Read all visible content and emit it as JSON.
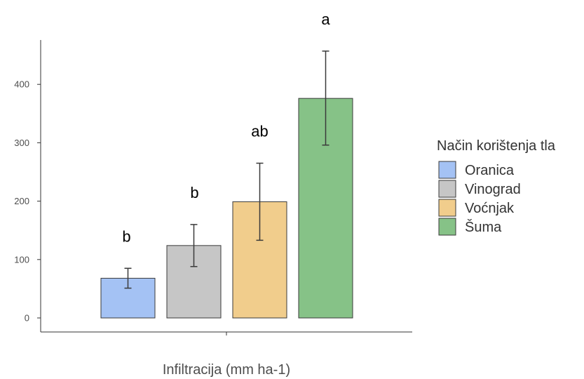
{
  "chart_data": {
    "type": "bar",
    "xlabel": "Infiltracija (mm ha-1)",
    "ylabel": "",
    "ylim": [
      0,
      470
    ],
    "yticks": [
      0,
      100,
      200,
      300,
      400
    ],
    "legend": {
      "title": "Način korištenja tla",
      "placement": "right"
    },
    "series": [
      {
        "name": "Oranica",
        "value": 68,
        "err_low": 51,
        "err_high": 85,
        "sig": "b",
        "color": "#a4c2f4"
      },
      {
        "name": "Vinograd",
        "value": 124,
        "err_low": 88,
        "err_high": 160,
        "sig": "b",
        "color": "#c6c6c6"
      },
      {
        "name": "Voćnjak",
        "value": 199,
        "err_low": 133,
        "err_high": 265,
        "sig": "ab",
        "color": "#f1cd8c"
      },
      {
        "name": "Šuma",
        "value": 376,
        "err_low": 296,
        "err_high": 457,
        "sig": "a",
        "color": "#86c287"
      }
    ],
    "grid": false
  }
}
